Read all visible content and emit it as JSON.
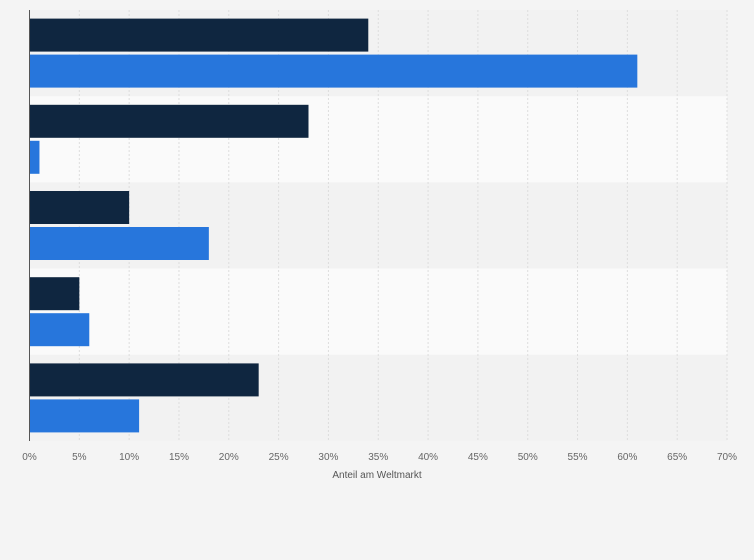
{
  "chart_data": {
    "type": "bar",
    "orientation": "horizontal",
    "categories": [
      "",
      "",
      "",
      "",
      ""
    ],
    "series": [
      {
        "values": [
          34,
          28,
          10,
          5,
          23
        ]
      },
      {
        "values": [
          61,
          1,
          18,
          6,
          11
        ]
      }
    ],
    "xlabel": "Anteil am Weltmarkt",
    "ylabel": "",
    "xlim": [
      0,
      70
    ],
    "xticks": [
      0,
      5,
      10,
      15,
      20,
      25,
      30,
      35,
      40,
      45,
      50,
      55,
      60,
      65,
      70
    ],
    "xtick_labels": [
      "0%",
      "5%",
      "10%",
      "15%",
      "20%",
      "25%",
      "30%",
      "35%",
      "40%",
      "45%",
      "50%",
      "55%",
      "60%",
      "65%",
      "70%"
    ],
    "grid": true,
    "legend": "none"
  },
  "colors": {
    "background": "#f4f4f4",
    "band_dark": "#f2f2f2",
    "band_light": "#fafafa",
    "grid": "#dddddd",
    "series_dark": "#0f2640",
    "series_blue": "#2776dc"
  }
}
